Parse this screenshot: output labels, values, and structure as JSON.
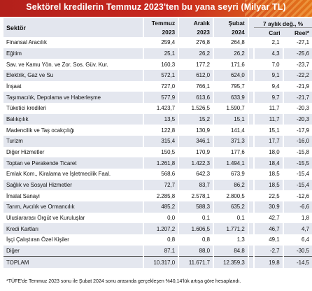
{
  "title": "Sektörel kredilerin Temmuz 2023'ten bu yana seyri (Milyar TL)",
  "headers": {
    "sector": "Sektör",
    "col1_line1": "Temmuz",
    "col1_line2": "2023",
    "col2_line1": "Aralık",
    "col2_line2": "2023",
    "col3_line1": "Şubat",
    "col3_line2": "2024",
    "change_group": "7 aylık değ., %",
    "nominal": "Cari",
    "real": "Reel*"
  },
  "rows": [
    {
      "sector": "Finansal Aracılık",
      "jul2023": "259,4",
      "dec2023": "276,8",
      "feb2024": "264,8",
      "nominal": "2,1",
      "real": "-27,1"
    },
    {
      "sector": "Eğitim",
      "jul2023": "25,1",
      "dec2023": "26,2",
      "feb2024": "26,2",
      "nominal": "4,3",
      "real": "-25,6"
    },
    {
      "sector": "Sav. ve Kamu Yön. ve Zor. Sos. Güv. Kur.",
      "jul2023": "160,3",
      "dec2023": "177,2",
      "feb2024": "171,6",
      "nominal": "7,0",
      "real": "-23,7"
    },
    {
      "sector": "Elektrik, Gaz ve Su",
      "jul2023": "572,1",
      "dec2023": "612,0",
      "feb2024": "624,0",
      "nominal": "9,1",
      "real": "-22,2"
    },
    {
      "sector": "İnşaat",
      "jul2023": "727,0",
      "dec2023": "766,1",
      "feb2024": "795,7",
      "nominal": "9,4",
      "real": "-21,9"
    },
    {
      "sector": "Taşımacılık, Depolama ve Haberleşme",
      "jul2023": "577,9",
      "dec2023": "613,6",
      "feb2024": "633,9",
      "nominal": "9,7",
      "real": "-21,7"
    },
    {
      "sector": "Tüketici kredileri",
      "jul2023": "1.423,7",
      "dec2023": "1.526,5",
      "feb2024": "1.590,7",
      "nominal": "11,7",
      "real": "-20,3"
    },
    {
      "sector": "Balıkçılık",
      "jul2023": "13,5",
      "dec2023": "15,2",
      "feb2024": "15,1",
      "nominal": "11,7",
      "real": "-20,3"
    },
    {
      "sector": "Madencilik ve Taş ocakçılığı",
      "jul2023": "122,8",
      "dec2023": "130,9",
      "feb2024": "141,4",
      "nominal": "15,1",
      "real": "-17,9"
    },
    {
      "sector": "Turizm",
      "jul2023": "315,4",
      "dec2023": "346,1",
      "feb2024": "371,3",
      "nominal": "17,7",
      "real": "-16,0"
    },
    {
      "sector": "Diğer Hizmetler",
      "jul2023": "150,5",
      "dec2023": "170,9",
      "feb2024": "177,6",
      "nominal": "18,0",
      "real": "-15,8"
    },
    {
      "sector": "Toptan ve Perakende Ticaret",
      "jul2023": "1.261,8",
      "dec2023": "1.422,3",
      "feb2024": "1.494,1",
      "nominal": "18,4",
      "real": "-15,5"
    },
    {
      "sector": "Emlak Kom., Kiralama ve İşletmecilik Faal.",
      "jul2023": "568,6",
      "dec2023": "642,3",
      "feb2024": "673,9",
      "nominal": "18,5",
      "real": "-15,4"
    },
    {
      "sector": "Sağlık ve Sosyal Hizmetler",
      "jul2023": "72,7",
      "dec2023": "83,7",
      "feb2024": "86,2",
      "nominal": "18,5",
      "real": "-15,4"
    },
    {
      "sector": "İmalat Sanayi",
      "jul2023": "2.285,8",
      "dec2023": "2.578,1",
      "feb2024": "2.800,5",
      "nominal": "22,5",
      "real": "-12,6"
    },
    {
      "sector": "Tarım, Avcılık ve Ormancılık",
      "jul2023": "485,2",
      "dec2023": "588,3",
      "feb2024": "635,2",
      "nominal": "30,9",
      "real": "-6,6"
    },
    {
      "sector": "Uluslararası Örgüt ve Kuruluşlar",
      "jul2023": "0,0",
      "dec2023": "0,1",
      "feb2024": "0,1",
      "nominal": "42,7",
      "real": "1,8"
    },
    {
      "sector": "Kredi Kartları",
      "jul2023": "1.207,2",
      "dec2023": "1.606,5",
      "feb2024": "1.771,2",
      "nominal": "46,7",
      "real": "4,7"
    },
    {
      "sector": "İşçi Çalıştıran Özel Kişiler",
      "jul2023": "0,8",
      "dec2023": "0,8",
      "feb2024": "1,3",
      "nominal": "49,1",
      "real": "6,4"
    },
    {
      "sector": "Diğer",
      "jul2023": "87,1",
      "dec2023": "88,0",
      "feb2024": "84,8",
      "nominal": "-2,7",
      "real": "-30,5"
    }
  ],
  "total": {
    "sector": "TOPLAM",
    "jul2023": "10.317,0",
    "dec2023": "11.671,7",
    "feb2024": "12.359,3",
    "nominal": "19,8",
    "real": "-14,5"
  },
  "footnote": "*TÜFE'de Temmuz 2023 sonu ile Şubat 2024 sonu arasında gerçekleşen %40,14'lük artışa göre hesaplandı."
}
